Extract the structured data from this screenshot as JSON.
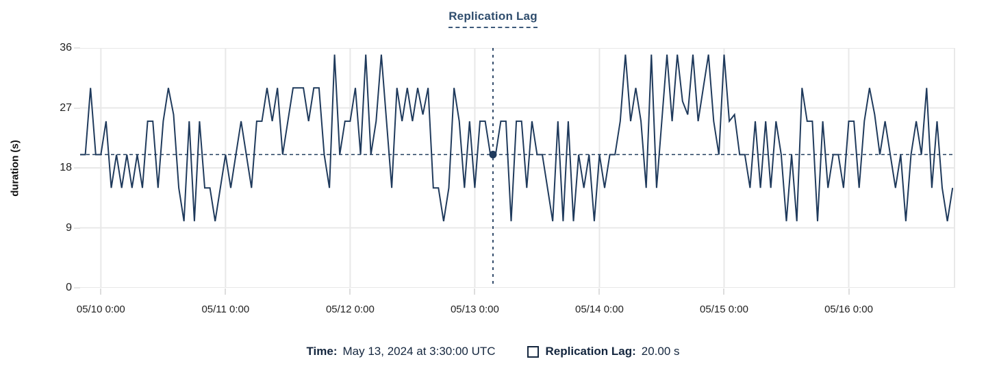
{
  "title": "Replication Lag",
  "colors": {
    "line": "#1f3a5c",
    "crosshair": "#1f3a5c",
    "dot": "#1f3a5c",
    "grid": "#e8e8e8",
    "title_text": "#2f4d6d",
    "legend_text": "#14263e",
    "tick_text": "#1f1f1f"
  },
  "tooltip": {
    "time_label": "Time:",
    "time_value": "May 13, 2024 at 3:30:00 UTC",
    "series_label": "Replication Lag:",
    "series_value": "20.00 s"
  },
  "chart_data": {
    "type": "line",
    "title": "Replication Lag",
    "xlabel": "",
    "ylabel": "duration (s)",
    "ylim": [
      0,
      36
    ],
    "yticks": [
      0,
      9,
      18,
      27,
      36
    ],
    "grid": true,
    "legend_position": "bottom",
    "x_unit": "time",
    "x_start_label": "05/09 20:00",
    "x_interval_hours": 1,
    "x_range_hours": [
      0,
      168.5
    ],
    "x_tick_hours": [
      4,
      28,
      52,
      76,
      100,
      124,
      148
    ],
    "x_tick_labels": [
      "05/10 0:00",
      "05/11 0:00",
      "05/12 0:00",
      "05/13 0:00",
      "05/14 0:00",
      "05/15 0:00",
      "05/16 0:00"
    ],
    "crosshair": {
      "x_hours": 79.5,
      "time": "May 13, 2024 at 3:30:00 UTC",
      "y_value": 20,
      "value_label": "20.00 s"
    },
    "series": [
      {
        "name": "Replication Lag",
        "unit": "s",
        "values": [
          20,
          20,
          30,
          20,
          20,
          25,
          15,
          20,
          15,
          20,
          15,
          20,
          15,
          25,
          25,
          15,
          25,
          30,
          26,
          15,
          10,
          25,
          10,
          25,
          15,
          15,
          10,
          15,
          20,
          15,
          20,
          25,
          20,
          15,
          25,
          25,
          30,
          25,
          30,
          20,
          25,
          30,
          30,
          30,
          25,
          30,
          30,
          20,
          15,
          35,
          20,
          25,
          25,
          30,
          20,
          35,
          20,
          25,
          35,
          25,
          15,
          30,
          25,
          30,
          25,
          30,
          26,
          30,
          15,
          15,
          10,
          15,
          30,
          25,
          15,
          25,
          15,
          25,
          25,
          20,
          20,
          25,
          25,
          10,
          25,
          25,
          15,
          25,
          20,
          20,
          15,
          10,
          25,
          10,
          25,
          10,
          20,
          15,
          20,
          10,
          20,
          15,
          20,
          20,
          25,
          35,
          25,
          30,
          25,
          15,
          35,
          15,
          25,
          35,
          25,
          35,
          28,
          26,
          35,
          25,
          30,
          35,
          25,
          20,
          35,
          25,
          26,
          20,
          20,
          15,
          25,
          15,
          25,
          15,
          25,
          20,
          10,
          20,
          10,
          30,
          25,
          25,
          10,
          25,
          15,
          20,
          20,
          15,
          25,
          25,
          15,
          25,
          30,
          26,
          20,
          25,
          20,
          15,
          20,
          10,
          20,
          25,
          20,
          30,
          15,
          25,
          15,
          10,
          15
        ]
      }
    ]
  }
}
